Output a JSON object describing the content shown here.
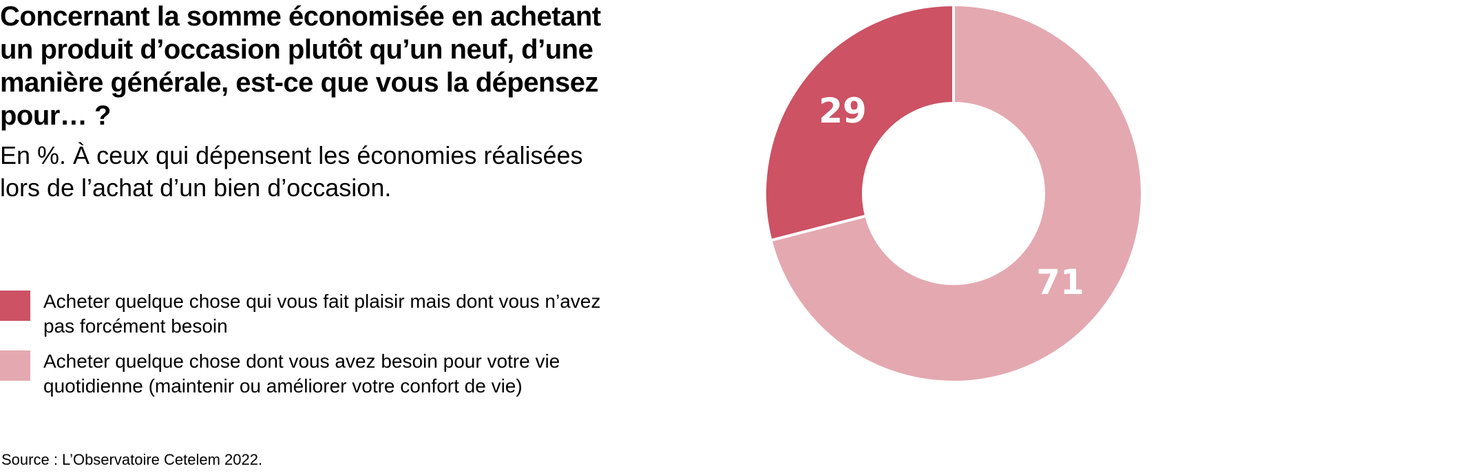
{
  "title": "Concernant la somme économisée en achetant un produit d’occasion plutôt qu’un neuf, d’une manière générale, est-ce que vous la dépensez pour… ?",
  "subtitle": "En %. À ceux qui dépensent les économies réalisées lors de l’achat d’un bien d’occasion.",
  "source": "Source : L’Observatoire Cetelem 2022.",
  "chart_data": {
    "type": "pie",
    "variant": "donut",
    "title": "Concernant la somme économisée en achetant un produit d’occasion plutôt qu’un neuf, d’une manière générale, est-ce que vous la dépensez pour… ?",
    "unit": "%",
    "legend_placement": "left",
    "slices": [
      {
        "label": "Acheter quelque chose qui vous fait plaisir mais dont vous n’avez pas forcément besoin",
        "value": 29,
        "display": "29",
        "color": "#cc5264"
      },
      {
        "label": "Acheter quelque chose dont vous avez besoin pour votre vie quotidienne (maintenir ou améliorer votre confort de vie)",
        "value": 71,
        "display": "71",
        "color": "#e4a8b0"
      }
    ]
  }
}
